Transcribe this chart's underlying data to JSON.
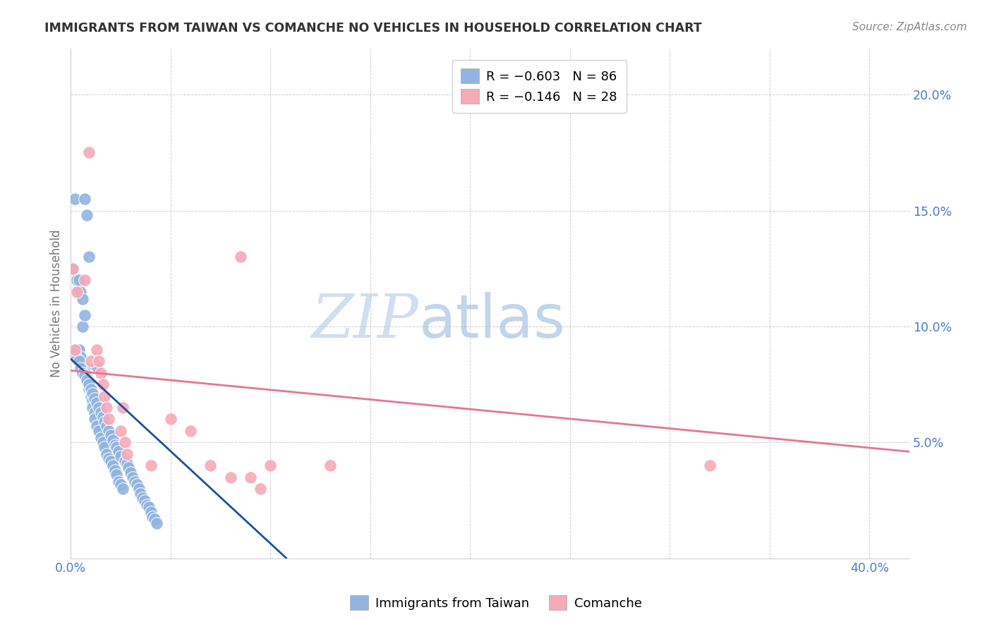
{
  "title": "IMMIGRANTS FROM TAIWAN VS COMANCHE NO VEHICLES IN HOUSEHOLD CORRELATION CHART",
  "source": "Source: ZipAtlas.com",
  "ylabel": "No Vehicles in Household",
  "xlim": [
    0.0,
    0.42
  ],
  "ylim": [
    0.0,
    0.22
  ],
  "x_ticks": [
    0.0,
    0.05,
    0.1,
    0.15,
    0.2,
    0.25,
    0.3,
    0.35,
    0.4
  ],
  "x_tick_labels": [
    "0.0%",
    "",
    "",
    "",
    "",
    "",
    "",
    "",
    "40.0%"
  ],
  "y_ticks": [
    0.0,
    0.05,
    0.1,
    0.15,
    0.2
  ],
  "y_tick_labels": [
    "",
    "5.0%",
    "10.0%",
    "15.0%",
    "20.0%"
  ],
  "legend_r1": "R = −0.603",
  "legend_n1": "N = 86",
  "legend_r2": "R = −0.146",
  "legend_n2": "N = 28",
  "blue_color": "#92b4e0",
  "pink_color": "#f5aab8",
  "blue_line_color": "#1a50a0",
  "pink_line_color": "#e8758f",
  "tick_color": "#4a7cc7",
  "grid_color": "#d0d0d0",
  "background_color": "#ffffff",
  "taiwan_x": [
    0.002,
    0.007,
    0.008,
    0.009,
    0.013,
    0.001,
    0.003,
    0.004,
    0.004,
    0.005,
    0.006,
    0.006,
    0.007,
    0.003,
    0.004,
    0.005,
    0.005,
    0.006,
    0.006,
    0.007,
    0.007,
    0.008,
    0.008,
    0.009,
    0.009,
    0.01,
    0.01,
    0.011,
    0.011,
    0.012,
    0.012,
    0.013,
    0.014,
    0.015,
    0.016,
    0.017,
    0.018,
    0.019,
    0.02,
    0.021,
    0.022,
    0.023,
    0.024,
    0.025,
    0.026,
    0.002,
    0.003,
    0.004,
    0.005,
    0.006,
    0.007,
    0.008,
    0.009,
    0.01,
    0.011,
    0.012,
    0.013,
    0.014,
    0.015,
    0.016,
    0.017,
    0.018,
    0.019,
    0.02,
    0.021,
    0.022,
    0.023,
    0.024,
    0.025,
    0.027,
    0.028,
    0.029,
    0.03,
    0.031,
    0.032,
    0.033,
    0.034,
    0.035,
    0.036,
    0.037,
    0.038,
    0.039,
    0.04,
    0.041,
    0.042,
    0.043
  ],
  "taiwan_y": [
    0.155,
    0.155,
    0.148,
    0.13,
    0.083,
    0.125,
    0.12,
    0.115,
    0.12,
    0.115,
    0.1,
    0.112,
    0.105,
    0.09,
    0.09,
    0.085,
    0.087,
    0.082,
    0.08,
    0.082,
    0.08,
    0.078,
    0.077,
    0.075,
    0.073,
    0.07,
    0.072,
    0.068,
    0.065,
    0.063,
    0.06,
    0.057,
    0.055,
    0.052,
    0.05,
    0.048,
    0.045,
    0.043,
    0.042,
    0.04,
    0.038,
    0.036,
    0.033,
    0.032,
    0.03,
    0.088,
    0.086,
    0.085,
    0.082,
    0.08,
    0.079,
    0.077,
    0.075,
    0.073,
    0.071,
    0.069,
    0.067,
    0.065,
    0.063,
    0.061,
    0.059,
    0.057,
    0.055,
    0.053,
    0.051,
    0.049,
    0.048,
    0.046,
    0.044,
    0.042,
    0.041,
    0.039,
    0.037,
    0.035,
    0.033,
    0.032,
    0.03,
    0.028,
    0.026,
    0.025,
    0.023,
    0.022,
    0.02,
    0.018,
    0.017,
    0.015
  ],
  "comanche_x": [
    0.001,
    0.002,
    0.003,
    0.007,
    0.009,
    0.01,
    0.013,
    0.014,
    0.015,
    0.016,
    0.017,
    0.018,
    0.019,
    0.025,
    0.026,
    0.027,
    0.028,
    0.04,
    0.05,
    0.06,
    0.07,
    0.08,
    0.085,
    0.09,
    0.095,
    0.1,
    0.13,
    0.32
  ],
  "comanche_y": [
    0.125,
    0.09,
    0.115,
    0.12,
    0.175,
    0.085,
    0.09,
    0.085,
    0.08,
    0.075,
    0.07,
    0.065,
    0.06,
    0.055,
    0.065,
    0.05,
    0.045,
    0.04,
    0.06,
    0.055,
    0.04,
    0.035,
    0.13,
    0.035,
    0.03,
    0.04,
    0.04,
    0.04
  ],
  "watermark_zip": "ZIP",
  "watermark_atlas": "atlas",
  "taiwan_trendline_x": [
    0.0,
    0.108
  ],
  "taiwan_trendline_y": [
    0.086,
    0.0
  ],
  "comanche_trendline_x": [
    0.0,
    0.42
  ],
  "comanche_trendline_y": [
    0.081,
    0.046
  ]
}
